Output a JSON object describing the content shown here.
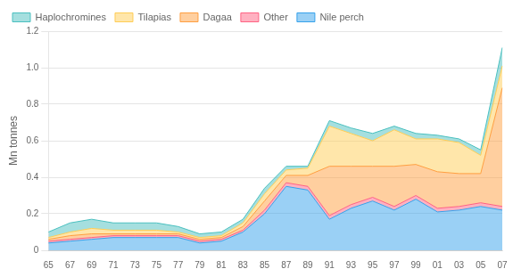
{
  "chart_data": {
    "type": "area",
    "stacked": true,
    "ylabel": "Mn tonnes",
    "categories": [
      "65",
      "67",
      "69",
      "71",
      "73",
      "75",
      "77",
      "79",
      "81",
      "83",
      "85",
      "87",
      "89",
      "91",
      "93",
      "95",
      "97",
      "99",
      "01",
      "03",
      "05",
      "07"
    ],
    "series": [
      {
        "name": "Nile perch",
        "values": [
          0.04,
          0.05,
          0.06,
          0.07,
          0.07,
          0.07,
          0.07,
          0.04,
          0.05,
          0.1,
          0.2,
          0.35,
          0.33,
          0.17,
          0.23,
          0.27,
          0.22,
          0.28,
          0.21,
          0.22,
          0.24,
          0.22
        ]
      },
      {
        "name": "Other",
        "values": [
          0.01,
          0.01,
          0.01,
          0.01,
          0.01,
          0.01,
          0.01,
          0.01,
          0.01,
          0.01,
          0.02,
          0.02,
          0.02,
          0.02,
          0.02,
          0.02,
          0.02,
          0.02,
          0.02,
          0.02,
          0.02,
          0.02
        ]
      },
      {
        "name": "Dagaa",
        "values": [
          0.01,
          0.02,
          0.02,
          0.01,
          0.01,
          0.01,
          0.01,
          0.01,
          0.01,
          0.02,
          0.05,
          0.04,
          0.06,
          0.27,
          0.21,
          0.17,
          0.22,
          0.17,
          0.2,
          0.18,
          0.16,
          0.65
        ]
      },
      {
        "name": "Tilapias",
        "values": [
          0.01,
          0.02,
          0.03,
          0.02,
          0.02,
          0.02,
          0.01,
          0.01,
          0.01,
          0.02,
          0.04,
          0.03,
          0.04,
          0.22,
          0.18,
          0.14,
          0.2,
          0.14,
          0.18,
          0.17,
          0.1,
          0.12
        ]
      },
      {
        "name": "Haplochromines",
        "values": [
          0.03,
          0.05,
          0.05,
          0.04,
          0.04,
          0.04,
          0.03,
          0.02,
          0.02,
          0.02,
          0.03,
          0.02,
          0.01,
          0.03,
          0.03,
          0.04,
          0.02,
          0.03,
          0.02,
          0.02,
          0.03,
          0.1
        ]
      }
    ],
    "ylim": [
      0,
      1.2
    ],
    "yticks": [
      0,
      0.2,
      0.4,
      0.6,
      0.8,
      {
        "value": 1.0,
        "label": "1.0"
      },
      1.2
    ],
    "grid": true,
    "legend": "upper left"
  }
}
